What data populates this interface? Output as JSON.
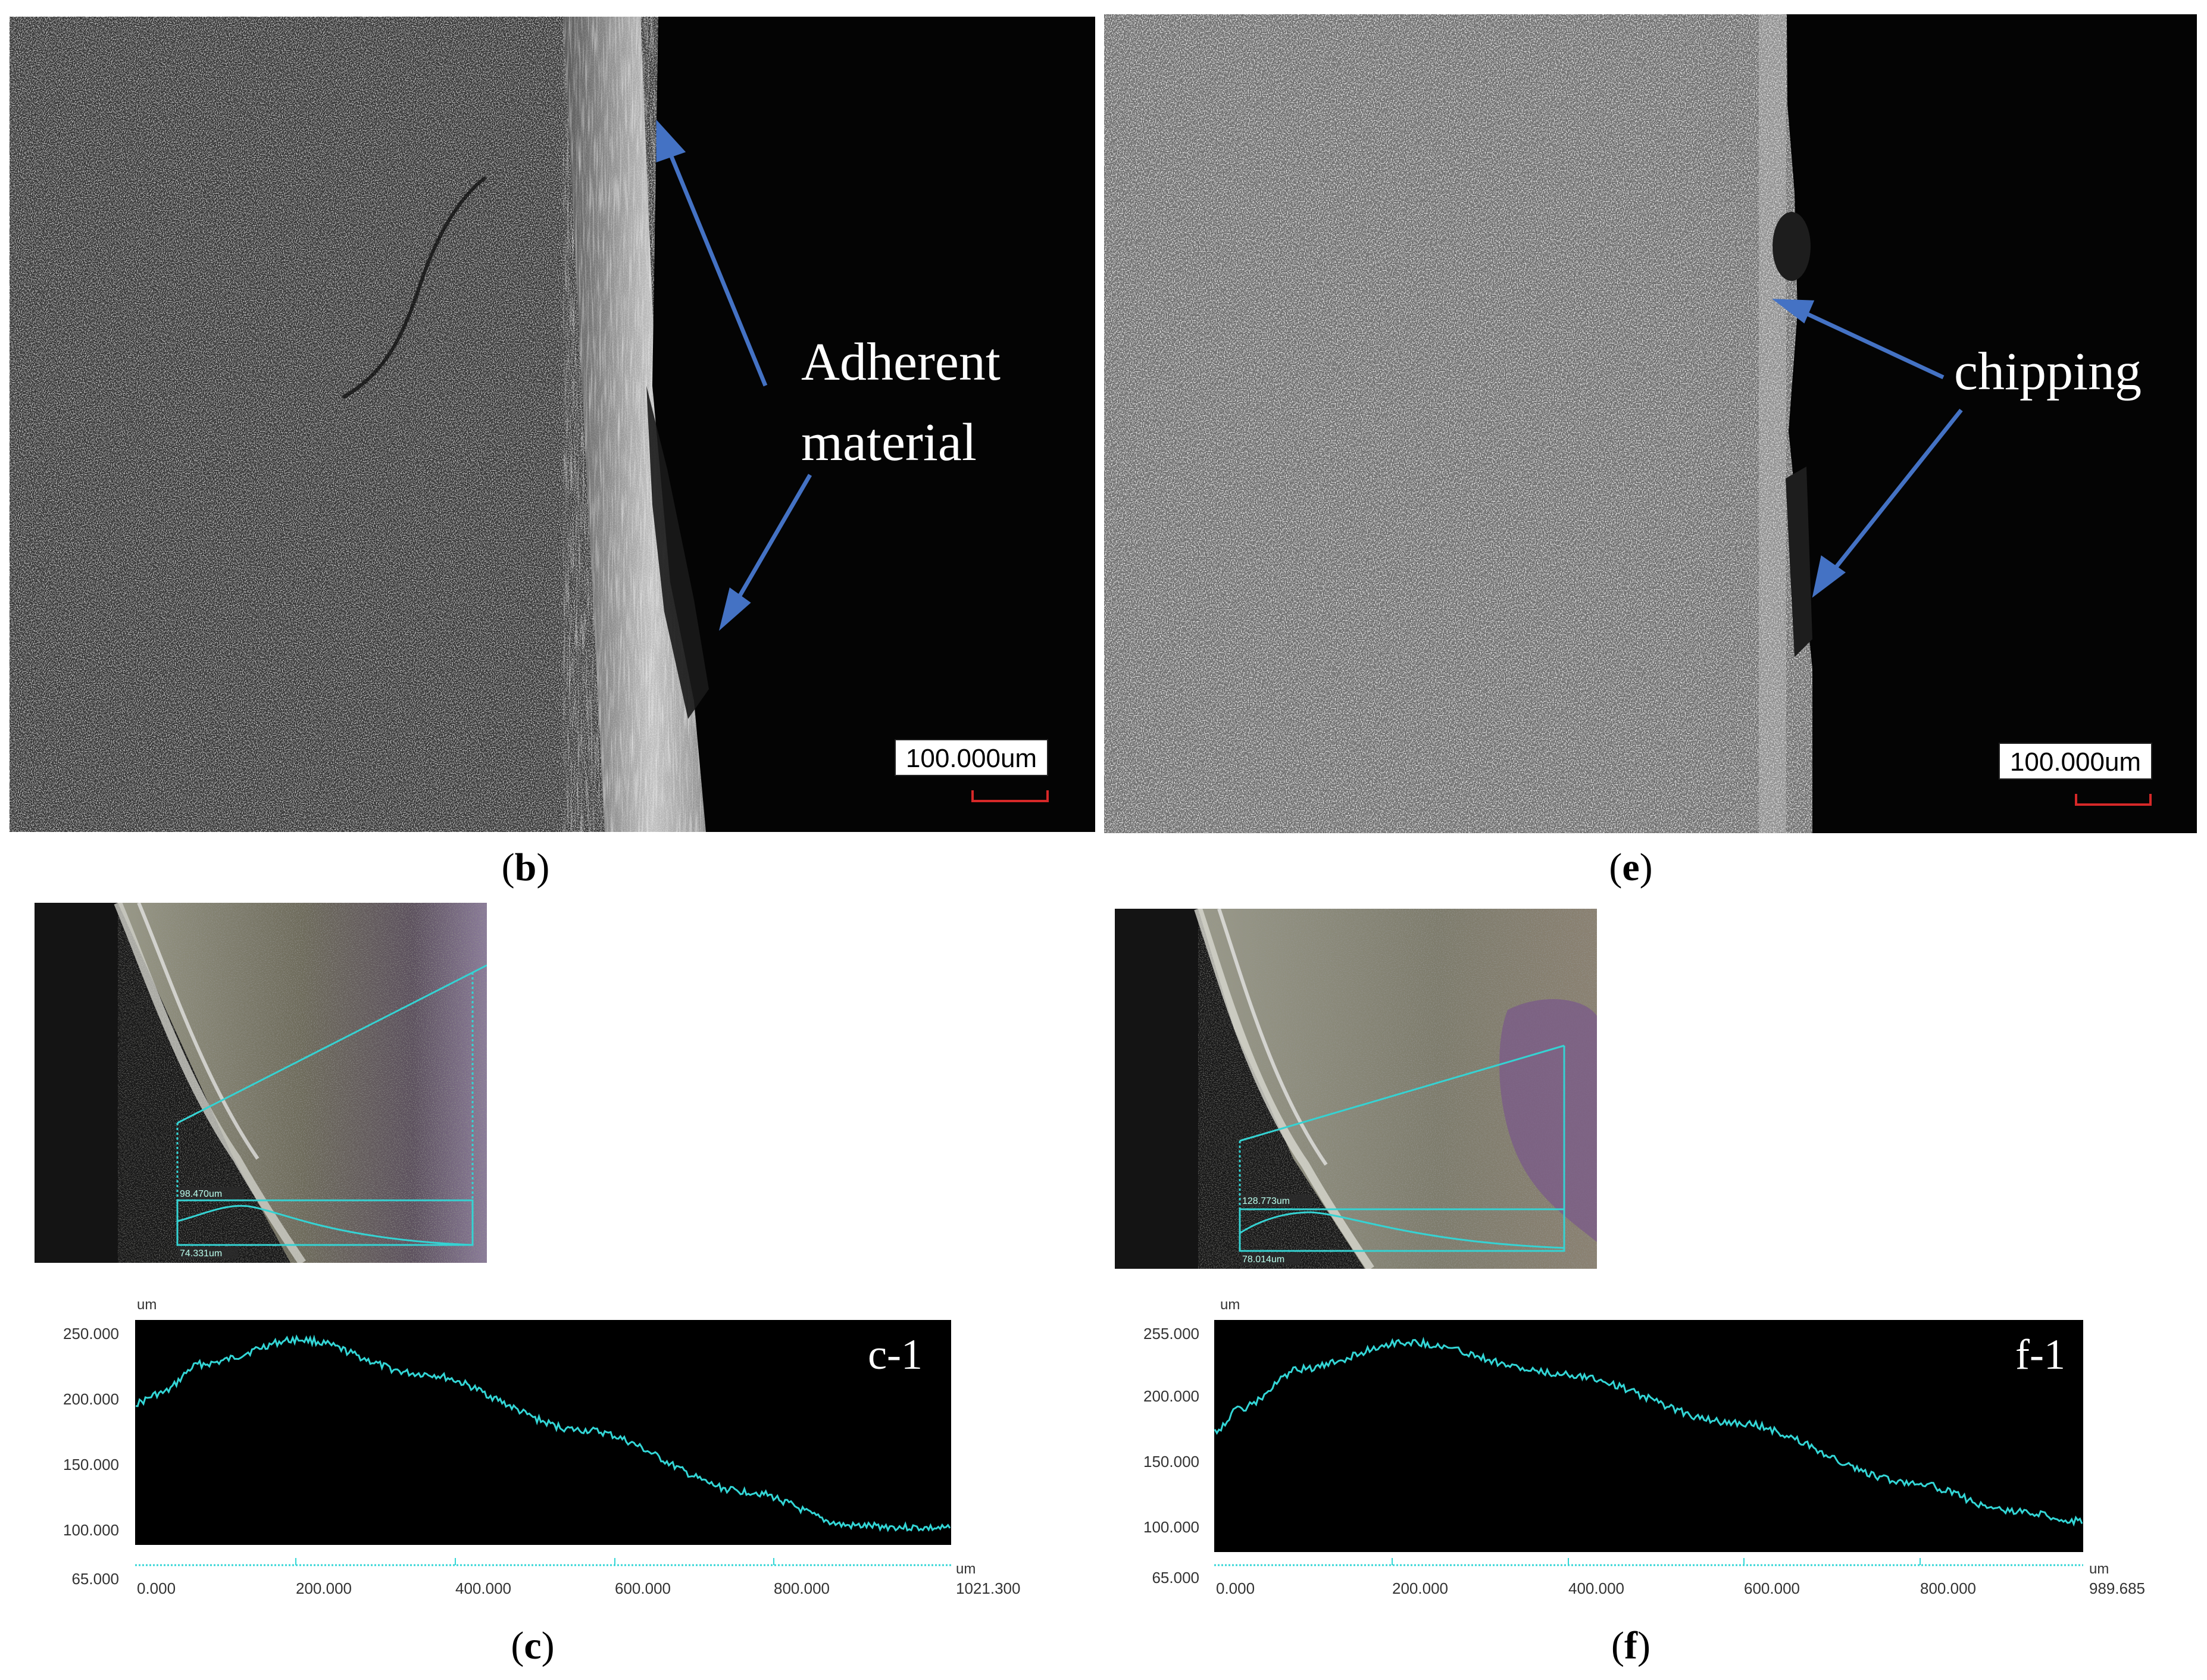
{
  "panels": {
    "b": {
      "label_open": "(",
      "label_letter": "b",
      "label_close": ")",
      "annotation_line1": "Adherent",
      "annotation_line2": "material",
      "scalebar": "100.000um"
    },
    "e": {
      "label_open": "(",
      "label_letter": "e",
      "label_close": ")",
      "annotation": "chipping",
      "scalebar": "100.000um"
    },
    "c": {
      "label_open": "(",
      "label_letter": "c",
      "label_close": ")",
      "thumb_tag_upper": "98.470um",
      "thumb_tag_lower": "74.331um",
      "profile": {
        "tag": "c-1",
        "y_unit": "um",
        "x_unit": "um",
        "y_ticks": [
          "250.000",
          "200.000",
          "150.000",
          "100.000",
          "65.000"
        ],
        "x_ticks": [
          "0.000",
          "200.000",
          "400.000",
          "600.000",
          "800.000",
          "1021.300"
        ]
      }
    },
    "f": {
      "label_open": "(",
      "label_letter": "f",
      "label_close": ")",
      "thumb_tag_upper": "128.773um",
      "thumb_tag_lower": "78.014um",
      "profile": {
        "tag": "f-1",
        "y_unit": "um",
        "x_unit": "um",
        "y_ticks": [
          "255.000",
          "200.000",
          "150.000",
          "100.000",
          "65.000"
        ],
        "x_ticks": [
          "0.000",
          "200.000",
          "400.000",
          "600.000",
          "800.000",
          "989.685"
        ]
      }
    }
  },
  "colors": {
    "arrow": "#4472c4",
    "profile_line": "#33d6d6",
    "plot_bg": "#000000",
    "scalebar_line": "#d62828"
  }
}
